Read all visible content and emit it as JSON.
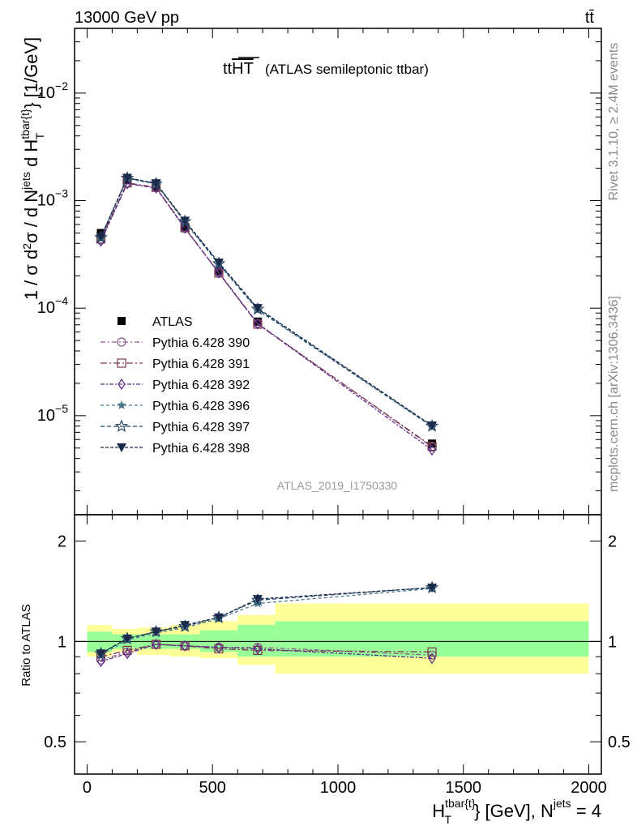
{
  "header": {
    "energy_label": "13000 GeV pp",
    "process_label": "tt̄"
  },
  "plot_title": {
    "main": "tt",
    "overline": "HT",
    "suffix": "(ATLAS semileptonic ttbar)"
  },
  "side_text": {
    "rivet": "Rivet 3.1.10, ≥ 2.4M events",
    "mcplots": "mcplots.cern.ch [arXiv:1306.3436]"
  },
  "analysis_id": "ATLAS_2019_I1750330",
  "ratio_ylabel": "Ratio to ATLAS",
  "colors": {
    "ATLAS": "#000000",
    "390": "#8a5a8a",
    "391": "#7a3a4a",
    "392": "#5a2a8a",
    "396": "#4a7a8a",
    "397": "#2a4a6a",
    "398": "#1a2a4a",
    "band_inner": "#99ff99",
    "band_outer": "#ffff99"
  },
  "chart_data": {
    "type": "line",
    "x_bins": [
      [
        0,
        100
      ],
      [
        100,
        200
      ],
      [
        200,
        330
      ],
      [
        330,
        450
      ],
      [
        450,
        600
      ],
      [
        600,
        750
      ],
      [
        750,
        2000
      ]
    ],
    "x": [
      55,
      160,
      275,
      390,
      525,
      680,
      1375
    ],
    "xlim": [
      -50,
      2050
    ],
    "xticks": [
      0,
      500,
      1000,
      1500,
      2000
    ],
    "ylim_main": [
      1.2e-06,
      0.04
    ],
    "yscale_main": "log",
    "ylim_ratio": [
      0.4,
      2.4
    ],
    "yscale_ratio": "log",
    "ratio_yticks": [
      0.5,
      1,
      2
    ],
    "series": [
      {
        "name": "ATLAS",
        "marker": "square-filled",
        "values": [
          0.0005,
          0.00155,
          0.00135,
          0.00057,
          0.00022,
          7.5e-05,
          5.5e-06
        ],
        "ratio": [
          1,
          1,
          1,
          1,
          1,
          1,
          1
        ],
        "band_inner": [
          [
            0.93,
            1.07
          ],
          [
            0.95,
            1.05
          ],
          [
            0.95,
            1.05
          ],
          [
            0.95,
            1.05
          ],
          [
            0.93,
            1.08
          ],
          [
            0.9,
            1.12
          ],
          [
            0.9,
            1.15
          ]
        ],
        "band_outer": [
          [
            0.9,
            1.12
          ],
          [
            0.93,
            1.09
          ],
          [
            0.91,
            1.1
          ],
          [
            0.9,
            1.12
          ],
          [
            0.89,
            1.15
          ],
          [
            0.85,
            1.2
          ],
          [
            0.8,
            1.3
          ]
        ]
      },
      {
        "name": "Pythia 6.428 390",
        "marker": "circle-open",
        "dash": "6,3,2,3",
        "values": [
          0.00043,
          0.00145,
          0.00132,
          0.00055,
          0.000215,
          7.2e-05,
          5.1e-06
        ],
        "ratio": [
          0.88,
          0.93,
          0.98,
          0.97,
          0.96,
          0.96,
          0.91
        ]
      },
      {
        "name": "Pythia 6.428 391",
        "marker": "square-open",
        "dash": "8,3,2,3",
        "values": [
          0.00044,
          0.00146,
          0.00133,
          0.00056,
          0.000212,
          7.1e-05,
          5.2e-06
        ],
        "ratio": [
          0.9,
          0.94,
          0.98,
          0.97,
          0.95,
          0.94,
          0.93
        ]
      },
      {
        "name": "Pythia 6.428 392",
        "marker": "diamond-open",
        "dash": "5,2,2,2",
        "values": [
          0.00042,
          0.00144,
          0.00131,
          0.000555,
          0.000213,
          7.15e-05,
          4.8e-06
        ],
        "ratio": [
          0.87,
          0.92,
          0.98,
          0.97,
          0.96,
          0.95,
          0.89
        ]
      },
      {
        "name": "Pythia 6.428 396",
        "marker": "star-filled",
        "dash": "4,3",
        "values": [
          0.00045,
          0.0016,
          0.00143,
          0.00063,
          0.000255,
          9.6e-05,
          7.9e-06
        ],
        "ratio": [
          0.91,
          1.01,
          1.06,
          1.1,
          1.17,
          1.3,
          1.44
        ]
      },
      {
        "name": "Pythia 6.428 397",
        "marker": "star-open",
        "dash": "5,3",
        "values": [
          0.000455,
          0.00162,
          0.00144,
          0.00064,
          0.00026,
          9.8e-05,
          8e-06
        ],
        "ratio": [
          0.92,
          1.02,
          1.07,
          1.11,
          1.18,
          1.33,
          1.45
        ]
      },
      {
        "name": "Pythia 6.428 398",
        "marker": "triangle-down-filled",
        "dash": "4,2",
        "values": [
          0.00046,
          0.00163,
          0.00145,
          0.00065,
          0.000265,
          0.0001,
          8.1e-06
        ],
        "ratio": [
          0.92,
          1.02,
          1.07,
          1.12,
          1.18,
          1.34,
          1.45
        ]
      }
    ]
  }
}
